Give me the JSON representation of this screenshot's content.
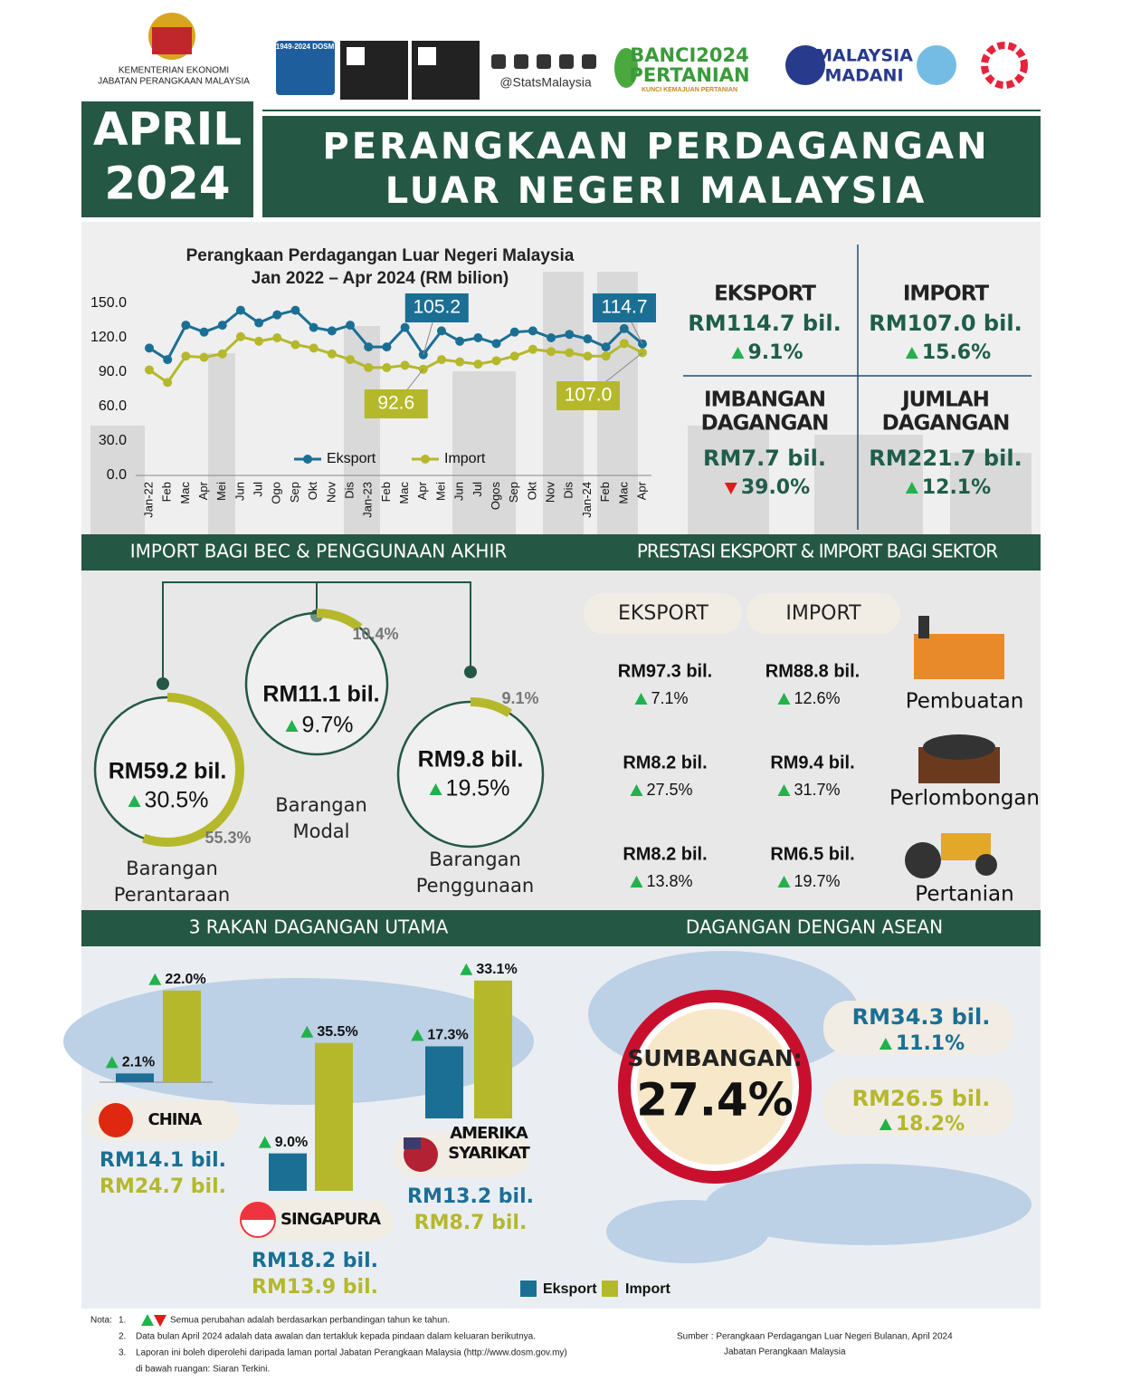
{
  "header": {
    "ministry": "KEMENTERIAN EKONOMI",
    "department": "JABATAN PERANGKAAN MALAYSIA",
    "dosm_badge": "1949-2024 DOSM",
    "social_handle": "@StatsMalaysia",
    "census_line1": "BANCI2024",
    "census_line2": "PERTANIAN",
    "census_tagline": "KUNCI KEMAJUAN PERTANIAN",
    "madani_line1": "MALAYSIA",
    "madani_line2": "MADANI"
  },
  "title": {
    "month": "APRIL",
    "year": "2024",
    "line1": "PERANGKAAN PERDAGANGAN",
    "line2": "LUAR NEGERI MALAYSIA"
  },
  "chart_data": {
    "type": "line",
    "title": "Perangkaan Perdagangan Luar Negeri Malaysia",
    "subtitle": "Jan 2022 – Apr 2024 (RM bilion)",
    "categories": [
      "Jan-22",
      "Feb",
      "Mac",
      "Apr",
      "Mei",
      "Jun",
      "Jul",
      "Ogo",
      "Sep",
      "Okt",
      "Nov",
      "Dis",
      "Jan-23",
      "Feb",
      "Mac",
      "Apr",
      "Mei",
      "Jun",
      "Jul",
      "Ogos",
      "Sep",
      "Okt",
      "Nov",
      "Dis",
      "Jan-24",
      "Feb",
      "Mac",
      "Apr"
    ],
    "series": [
      {
        "name": "Eksport",
        "color": "#1b6f94",
        "values": [
          111,
          101,
          131,
          125,
          131,
          144,
          133,
          140,
          144,
          129,
          126,
          131,
          112,
          112,
          129,
          105.2,
          126,
          117,
          120,
          115,
          125,
          126,
          120,
          123,
          119,
          112,
          128,
          114.7
        ],
        "value_labels": [
          null,
          null,
          null,
          null,
          null,
          null,
          null,
          null,
          null,
          null,
          null,
          null,
          null,
          null,
          null,
          "105.2",
          null,
          null,
          null,
          null,
          null,
          null,
          null,
          null,
          null,
          null,
          null,
          "114.7"
        ]
      },
      {
        "name": "Import",
        "color": "#b5b82b",
        "values": [
          92,
          81,
          104,
          103,
          106,
          121,
          117,
          120,
          114,
          111,
          106,
          101,
          94,
          94,
          96,
          92.6,
          101,
          99,
          97,
          100,
          104,
          110,
          108,
          107,
          104,
          104,
          115,
          107
        ],
        "value_labels": [
          null,
          null,
          null,
          null,
          null,
          null,
          null,
          null,
          null,
          null,
          null,
          null,
          null,
          null,
          null,
          "92.6",
          null,
          null,
          null,
          null,
          null,
          null,
          null,
          null,
          null,
          null,
          null,
          "107.0"
        ]
      }
    ],
    "ylim": [
      0,
      150
    ],
    "yticks": [
      {
        "value": 0,
        "label": "0.0"
      },
      {
        "value": 30,
        "label": "30.0"
      },
      {
        "value": 60,
        "label": "60.0"
      },
      {
        "value": 90,
        "label": "90.0"
      },
      {
        "value": 120,
        "label": "120.0"
      },
      {
        "value": 150,
        "label": "150.0"
      }
    ],
    "grid": false,
    "legend": "bottom"
  },
  "summary": [
    {
      "label_lines": [
        "EKSPORT"
      ],
      "value": "RM114.7 bil.",
      "growth": "9.1%",
      "direction": "up"
    },
    {
      "label_lines": [
        "IMPORT"
      ],
      "value": "RM107.0 bil.",
      "growth": "15.6%",
      "direction": "up"
    },
    {
      "label_lines": [
        "IMBANGAN",
        "DAGANGAN"
      ],
      "value": "RM7.7 bil.",
      "growth": "39.0%",
      "direction": "down"
    },
    {
      "label_lines": [
        "JUMLAH",
        "DAGANGAN"
      ],
      "value": "RM221.7 bil.",
      "growth": "12.1%",
      "direction": "up"
    }
  ],
  "sections": {
    "bec": "IMPORT BAGI BEC & PENGGUNAAN AKHIR",
    "sector": "PRESTASI EKSPORT & IMPORT BAGI SEKTOR",
    "partners": "3 RAKAN DAGANGAN UTAMA",
    "asean": "DAGANGAN DENGAN ASEAN"
  },
  "bec": [
    {
      "name_lines": [
        "Barangan",
        "Perantaraan"
      ],
      "value": "RM59.2 bil.",
      "growth": "30.5%",
      "share": 55.3,
      "share_label": "55.3%"
    },
    {
      "name_lines": [
        "Barangan",
        "Modal"
      ],
      "value": "RM11.1 bil.",
      "growth": "9.7%",
      "share": 10.4,
      "share_label": "10.4%"
    },
    {
      "name_lines": [
        "Barangan",
        "Penggunaan"
      ],
      "value": "RM9.8 bil.",
      "growth": "19.5%",
      "share": 9.1,
      "share_label": "9.1%"
    }
  ],
  "sector": {
    "export_header": "EKSPORT",
    "import_header": "IMPORT",
    "rows": [
      {
        "name": "Pembuatan",
        "export": {
          "value": "RM97.3 bil.",
          "growth": "7.1%"
        },
        "import": {
          "value": "RM88.8 bil.",
          "growth": "12.6%"
        }
      },
      {
        "name": "Perlombongan",
        "export": {
          "value": "RM8.2 bil.",
          "growth": "27.5%"
        },
        "import": {
          "value": "RM9.4 bil.",
          "growth": "31.7%"
        }
      },
      {
        "name": "Pertanian",
        "export": {
          "value": "RM8.2 bil.",
          "growth": "13.8%"
        },
        "import": {
          "value": "RM6.5 bil.",
          "growth": "19.7%"
        }
      }
    ]
  },
  "partners": {
    "legend": {
      "export": "Eksport",
      "import": "Import"
    },
    "items": [
      {
        "name_lines": [
          "CHINA"
        ],
        "export_value": "RM14.1 bil.",
        "import_value": "RM24.7 bil.",
        "export_growth": 2.1,
        "export_growth_label": "2.1%",
        "import_growth": 22.0,
        "import_growth_label": "22.0%"
      },
      {
        "name_lines": [
          "SINGAPURA"
        ],
        "export_value": "RM18.2 bil.",
        "import_value": "RM13.9 bil.",
        "export_growth": 9.0,
        "export_growth_label": "9.0%",
        "import_growth": 35.5,
        "import_growth_label": "35.5%"
      },
      {
        "name_lines": [
          "AMERIKA",
          "SYARIKAT"
        ],
        "export_value": "RM13.2 bil.",
        "import_value": "RM8.7 bil.",
        "export_growth": 17.3,
        "export_growth_label": "17.3%",
        "import_growth": 33.1,
        "import_growth_label": "33.1%"
      }
    ]
  },
  "asean": {
    "label": "SUMBANGAN:",
    "share": "27.4%",
    "export": {
      "value": "RM34.3 bil.",
      "growth": "11.1%"
    },
    "import": {
      "value": "RM26.5 bil.",
      "growth": "18.2%"
    }
  },
  "notes": {
    "label": "Nota:",
    "items": [
      {
        "num": "1.",
        "lines": [
          "Semua perubahan adalah berdasarkan perbandingan tahun ke tahun."
        ]
      },
      {
        "num": "2.",
        "lines": [
          "Data bulan April 2024 adalah data awalan dan tertakluk kepada pindaan dalam keluaran berikutnya."
        ]
      },
      {
        "num": "3.",
        "lines": [
          "Laporan ini boleh diperolehi daripada laman portal Jabatan Perangkaan Malaysia (http://www.dosm.gov.my)",
          "di bawah ruangan: Siaran Terkini."
        ]
      }
    ]
  },
  "source": {
    "line1": "Sumber : Perangkaan Perdagangan Luar Negeri Bulanan, April 2024",
    "line2": "Jabatan Perangkaan Malaysia"
  }
}
